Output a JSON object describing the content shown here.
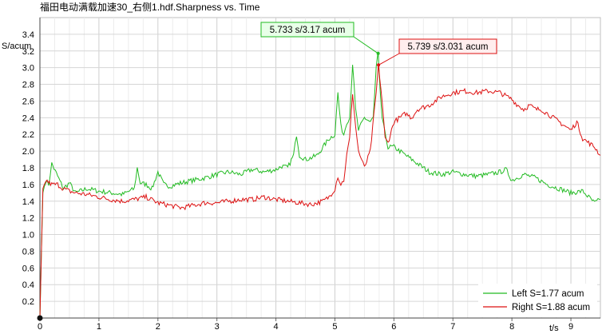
{
  "chart_data": {
    "type": "line",
    "title": "福田电动满载加速30_右侧1.hdf.Sharpness vs. Time",
    "ylabel": "S/acum",
    "xlabel": "t/s",
    "xlim": [
      0,
      9.5
    ],
    "ylim": [
      0,
      3.6
    ],
    "xticks": [
      0,
      1,
      2,
      3,
      4,
      5,
      6,
      7,
      8,
      9
    ],
    "xtick_labels": [
      "0",
      "1",
      "2",
      "3",
      "4",
      "5",
      "6",
      "7",
      "8",
      "9"
    ],
    "yticks": [
      0.2,
      0.4,
      0.6,
      0.8,
      1.0,
      1.2,
      1.4,
      1.6,
      1.8,
      2.0,
      2.2,
      2.4,
      2.6,
      2.8,
      3.0,
      3.2,
      3.4
    ],
    "ytick_labels": [
      "0.2",
      "0.4",
      "0.6",
      "0.8",
      "1.0",
      "1.2",
      "1.4",
      "1.6",
      "1.8",
      "2.0",
      "2.2",
      "2.4",
      "2.6",
      "2.8",
      "3.0",
      "3.2",
      "3.4"
    ],
    "grid": true,
    "legend_position": "bottom-right",
    "series": [
      {
        "name": "Left S=1.77 acum",
        "color": "#22bb22",
        "x": [
          0,
          0.05,
          0.1,
          0.15,
          0.2,
          0.3,
          0.4,
          0.5,
          0.6,
          0.8,
          1.0,
          1.2,
          1.4,
          1.6,
          1.65,
          1.7,
          1.8,
          1.9,
          2.0,
          2.1,
          2.2,
          2.4,
          2.6,
          2.8,
          3.0,
          3.2,
          3.4,
          3.6,
          3.8,
          4.0,
          4.1,
          4.2,
          4.3,
          4.35,
          4.4,
          4.5,
          4.6,
          4.7,
          4.8,
          4.9,
          5.0,
          5.05,
          5.1,
          5.15,
          5.2,
          5.25,
          5.3,
          5.35,
          5.4,
          5.5,
          5.6,
          5.65,
          5.7,
          5.733,
          5.75,
          5.8,
          5.85,
          5.9,
          6.0,
          6.1,
          6.2,
          6.3,
          6.4,
          6.5,
          6.6,
          6.8,
          7.0,
          7.2,
          7.4,
          7.6,
          7.8,
          7.9,
          8.0,
          8.2,
          8.4,
          8.6,
          8.8,
          9.0,
          9.2,
          9.3,
          9.4,
          9.5
        ],
        "y": [
          0,
          1.5,
          1.65,
          1.6,
          1.85,
          1.7,
          1.55,
          1.62,
          1.5,
          1.55,
          1.52,
          1.5,
          1.48,
          1.55,
          1.8,
          1.62,
          1.6,
          1.55,
          1.75,
          1.6,
          1.58,
          1.62,
          1.65,
          1.68,
          1.72,
          1.75,
          1.72,
          1.78,
          1.75,
          1.78,
          1.82,
          1.8,
          1.95,
          2.2,
          1.95,
          1.9,
          1.92,
          1.95,
          2.05,
          2.15,
          2.2,
          2.7,
          2.3,
          2.2,
          2.35,
          2.4,
          3.05,
          2.5,
          2.25,
          2.4,
          2.35,
          2.4,
          3.0,
          3.17,
          2.9,
          2.4,
          2.2,
          2.05,
          2.05,
          2.0,
          1.95,
          1.9,
          1.85,
          1.8,
          1.75,
          1.72,
          1.75,
          1.72,
          1.7,
          1.72,
          1.75,
          1.78,
          1.65,
          1.72,
          1.68,
          1.6,
          1.55,
          1.5,
          1.52,
          1.45,
          1.38,
          1.42
        ]
      },
      {
        "name": "Right S=1.88 acum",
        "color": "#dd1111",
        "x": [
          0,
          0.05,
          0.1,
          0.2,
          0.3,
          0.4,
          0.5,
          0.6,
          0.8,
          1.0,
          1.2,
          1.4,
          1.6,
          1.8,
          2.0,
          2.2,
          2.4,
          2.6,
          2.8,
          3.0,
          3.2,
          3.4,
          3.6,
          3.8,
          4.0,
          4.2,
          4.4,
          4.6,
          4.8,
          4.9,
          5.0,
          5.05,
          5.1,
          5.15,
          5.2,
          5.25,
          5.3,
          5.35,
          5.4,
          5.45,
          5.5,
          5.6,
          5.7,
          5.739,
          5.8,
          5.85,
          5.9,
          6.0,
          6.1,
          6.2,
          6.3,
          6.4,
          6.6,
          6.8,
          7.0,
          7.2,
          7.4,
          7.6,
          7.8,
          8.0,
          8.1,
          8.2,
          8.3,
          8.4,
          8.5,
          8.6,
          8.8,
          9.0,
          9.1,
          9.2,
          9.3,
          9.4,
          9.5
        ],
        "y": [
          0,
          1.55,
          1.65,
          1.6,
          1.6,
          1.55,
          1.52,
          1.5,
          1.48,
          1.45,
          1.42,
          1.4,
          1.42,
          1.45,
          1.38,
          1.35,
          1.32,
          1.35,
          1.38,
          1.38,
          1.4,
          1.42,
          1.42,
          1.45,
          1.42,
          1.4,
          1.38,
          1.36,
          1.4,
          1.45,
          1.55,
          1.7,
          1.6,
          1.65,
          1.95,
          2.15,
          2.7,
          2.3,
          2.0,
          1.9,
          1.8,
          2.0,
          2.7,
          3.031,
          2.6,
          2.15,
          2.1,
          2.35,
          2.4,
          2.45,
          2.4,
          2.5,
          2.55,
          2.65,
          2.7,
          2.72,
          2.7,
          2.72,
          2.7,
          2.62,
          2.55,
          2.5,
          2.55,
          2.5,
          2.5,
          2.45,
          2.35,
          2.25,
          2.35,
          2.15,
          2.1,
          2.05,
          1.95
        ]
      }
    ],
    "annotations": [
      {
        "text": "5.733 s/3.17 acum",
        "x": 5.733,
        "y": 3.17,
        "series": 0
      },
      {
        "text": "5.739 s/3.031 acum",
        "x": 5.739,
        "y": 3.031,
        "series": 1
      }
    ]
  }
}
